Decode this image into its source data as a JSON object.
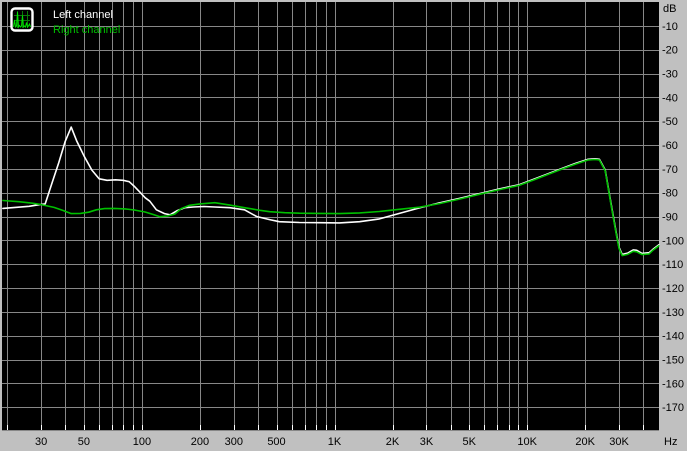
{
  "legend": {
    "left_label": "Left channel",
    "right_label": "Right channel"
  },
  "colors": {
    "page_background": "#c0c0c0",
    "plot_background": "#000000",
    "grid": "#878787",
    "tick": "#ffffff",
    "axis_text": "#000000",
    "left_channel": "#ffffff",
    "right_channel": "#00c000"
  },
  "chart_data": {
    "type": "line",
    "title": "",
    "grid": true,
    "legend_position": "top-left",
    "x_axis": {
      "unit": "Hz",
      "scale": "log",
      "min_hz": 18.8,
      "max_hz": 48300,
      "gridlines_hz": [
        20,
        30,
        40,
        50,
        60,
        70,
        80,
        90,
        100,
        200,
        300,
        400,
        500,
        600,
        700,
        800,
        900,
        1000,
        2000,
        3000,
        4000,
        5000,
        6000,
        7000,
        8000,
        9000,
        10000,
        20000,
        30000,
        40000
      ],
      "tick_labels": [
        {
          "hz": 30,
          "label": "30"
        },
        {
          "hz": 50,
          "label": "50"
        },
        {
          "hz": 100,
          "label": "100"
        },
        {
          "hz": 200,
          "label": "200"
        },
        {
          "hz": 300,
          "label": "300"
        },
        {
          "hz": 500,
          "label": "500"
        },
        {
          "hz": 1000,
          "label": "1K"
        },
        {
          "hz": 2000,
          "label": "2K"
        },
        {
          "hz": 3000,
          "label": "3K"
        },
        {
          "hz": 5000,
          "label": "5K"
        },
        {
          "hz": 10000,
          "label": "10K"
        },
        {
          "hz": 20000,
          "label": "20K"
        },
        {
          "hz": 30000,
          "label": "30K"
        }
      ]
    },
    "y_axis": {
      "unit": "dB",
      "min_db": -180,
      "max_db": 0,
      "gridline_step_db": 10,
      "tick_labels": [
        {
          "db": -10,
          "label": "-10"
        },
        {
          "db": -20,
          "label": "-20"
        },
        {
          "db": -30,
          "label": "-30"
        },
        {
          "db": -40,
          "label": "-40"
        },
        {
          "db": -50,
          "label": "-50"
        },
        {
          "db": -60,
          "label": "-60"
        },
        {
          "db": -70,
          "label": "-70"
        },
        {
          "db": -80,
          "label": "-80"
        },
        {
          "db": -90,
          "label": "-90"
        },
        {
          "db": -100,
          "label": "-100"
        },
        {
          "db": -110,
          "label": "-110"
        },
        {
          "db": -120,
          "label": "-120"
        },
        {
          "db": -130,
          "label": "-130"
        },
        {
          "db": -140,
          "label": "-140"
        },
        {
          "db": -150,
          "label": "-150"
        },
        {
          "db": -160,
          "label": "-160"
        },
        {
          "db": -170,
          "label": "-170"
        }
      ]
    },
    "series": [
      {
        "name": "Left channel",
        "color": "#ffffff",
        "points_hz_db": [
          [
            19,
            -86.6
          ],
          [
            22,
            -86.2
          ],
          [
            26,
            -85.7
          ],
          [
            29,
            -85.1
          ],
          [
            31.5,
            -84.7
          ],
          [
            34,
            -76.5
          ],
          [
            37,
            -67.5
          ],
          [
            40,
            -58.5
          ],
          [
            43,
            -52.5
          ],
          [
            46,
            -58.5
          ],
          [
            50,
            -64.5
          ],
          [
            55,
            -70.5
          ],
          [
            60,
            -74.2
          ],
          [
            66,
            -74.8
          ],
          [
            73,
            -74.6
          ],
          [
            80,
            -74.8
          ],
          [
            86,
            -75.4
          ],
          [
            92,
            -77.6
          ],
          [
            98,
            -79.9
          ],
          [
            104,
            -82.1
          ],
          [
            110,
            -83.6
          ],
          [
            119,
            -87.2
          ],
          [
            131,
            -88.8
          ],
          [
            140,
            -89.3
          ],
          [
            152,
            -87.6
          ],
          [
            167,
            -86.3
          ],
          [
            185,
            -86.0
          ],
          [
            210,
            -85.8
          ],
          [
            239,
            -86.0
          ],
          [
            286,
            -86.3
          ],
          [
            341,
            -87.2
          ],
          [
            394,
            -90.0
          ],
          [
            460,
            -91.3
          ],
          [
            517,
            -92.2
          ],
          [
            657,
            -92.5
          ],
          [
            836,
            -92.6
          ],
          [
            1060,
            -92.7
          ],
          [
            1350,
            -92.2
          ],
          [
            1710,
            -91.0
          ],
          [
            2170,
            -88.7
          ],
          [
            2760,
            -86.4
          ],
          [
            3500,
            -84.3
          ],
          [
            4450,
            -82.4
          ],
          [
            5650,
            -80.4
          ],
          [
            7180,
            -78.4
          ],
          [
            9110,
            -76.6
          ],
          [
            10800,
            -74.4
          ],
          [
            12900,
            -72.0
          ],
          [
            15300,
            -69.7
          ],
          [
            17800,
            -67.7
          ],
          [
            20700,
            -66.0
          ],
          [
            22500,
            -65.8
          ],
          [
            23700,
            -66.0
          ],
          [
            25400,
            -70.5
          ],
          [
            27100,
            -83.5
          ],
          [
            29000,
            -97.0
          ],
          [
            30000,
            -103.0
          ],
          [
            31100,
            -105.9
          ],
          [
            33200,
            -105.4
          ],
          [
            35500,
            -104.0
          ],
          [
            37000,
            -104.2
          ],
          [
            39400,
            -105.5
          ],
          [
            42900,
            -105.2
          ],
          [
            45000,
            -103.7
          ],
          [
            48200,
            -101.9
          ]
        ]
      },
      {
        "name": "Right channel",
        "color": "#00c000",
        "points_hz_db": [
          [
            19,
            -83.3
          ],
          [
            23,
            -83.8
          ],
          [
            27,
            -84.4
          ],
          [
            30,
            -85.0
          ],
          [
            35,
            -86.2
          ],
          [
            39,
            -87.5
          ],
          [
            43,
            -88.8
          ],
          [
            48,
            -88.7
          ],
          [
            53,
            -88.2
          ],
          [
            58,
            -87.2
          ],
          [
            64,
            -86.7
          ],
          [
            72,
            -86.6
          ],
          [
            82,
            -86.8
          ],
          [
            92,
            -87.3
          ],
          [
            104,
            -88.1
          ],
          [
            115,
            -89.2
          ],
          [
            124,
            -90.1
          ],
          [
            136,
            -89.8
          ],
          [
            148,
            -89.0
          ],
          [
            160,
            -86.7
          ],
          [
            177,
            -85.3
          ],
          [
            200,
            -84.7
          ],
          [
            239,
            -84.2
          ],
          [
            286,
            -85.2
          ],
          [
            341,
            -86.3
          ],
          [
            410,
            -87.4
          ],
          [
            460,
            -88.0
          ],
          [
            551,
            -88.4
          ],
          [
            657,
            -88.6
          ],
          [
            836,
            -88.7
          ],
          [
            1060,
            -88.8
          ],
          [
            1350,
            -88.5
          ],
          [
            1710,
            -87.9
          ],
          [
            2170,
            -87.0
          ],
          [
            2760,
            -86.1
          ],
          [
            3500,
            -84.6
          ],
          [
            4450,
            -82.7
          ],
          [
            5650,
            -80.7
          ],
          [
            7180,
            -78.7
          ],
          [
            9110,
            -76.9
          ],
          [
            10800,
            -74.7
          ],
          [
            12900,
            -72.3
          ],
          [
            15300,
            -70.0
          ],
          [
            17800,
            -68.0
          ],
          [
            20700,
            -66.3
          ],
          [
            22500,
            -66.1
          ],
          [
            23700,
            -66.3
          ],
          [
            25400,
            -70.8
          ],
          [
            27100,
            -84.0
          ],
          [
            29000,
            -97.5
          ],
          [
            30000,
            -103.5
          ],
          [
            31100,
            -106.4
          ],
          [
            33200,
            -105.9
          ],
          [
            35500,
            -104.6
          ],
          [
            37000,
            -104.8
          ],
          [
            39400,
            -106.0
          ],
          [
            42900,
            -105.7
          ],
          [
            45000,
            -104.1
          ],
          [
            48200,
            -102.3
          ]
        ]
      }
    ]
  }
}
